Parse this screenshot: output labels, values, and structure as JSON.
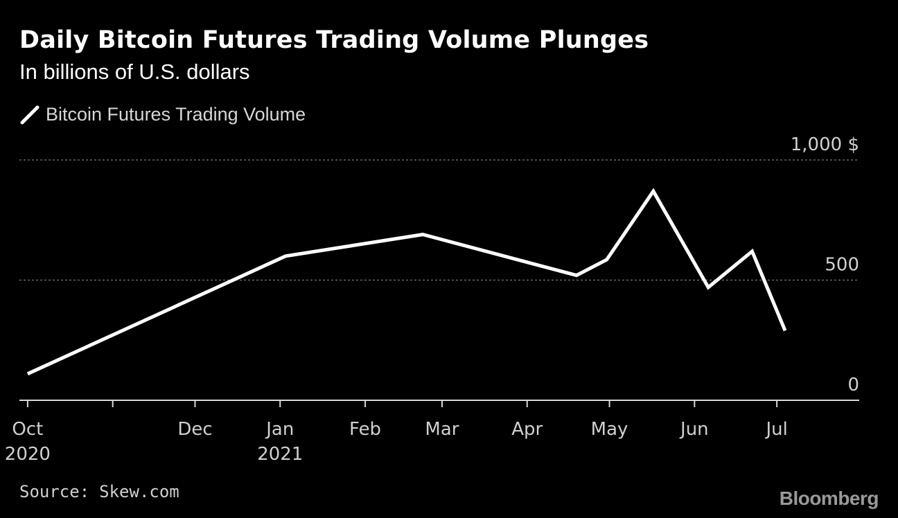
{
  "title": "Daily Bitcoin Futures Trading Volume Plunges",
  "subtitle": "In billions of U.S. dollars",
  "legend": {
    "label": "Bitcoin Futures Trading Volume",
    "icon": "slash-line-icon"
  },
  "source": {
    "label": "Source:",
    "value": "Skew.com"
  },
  "brand": "Bloomberg",
  "colors": {
    "background": "#000000",
    "line": "#ffffff",
    "text": "#d0d0d0",
    "grid": "#666666"
  },
  "chart_data": {
    "type": "line",
    "title": "Daily Bitcoin Futures Trading Volume Plunges",
    "subtitle": "In billions of U.S. dollars",
    "xlabel": "",
    "ylabel": "",
    "x_type": "date",
    "x_range": [
      "2020-09-28",
      "2021-07-31"
    ],
    "ylim": [
      0,
      1000
    ],
    "y_ticks": [
      {
        "value": 0,
        "label": "0"
      },
      {
        "value": 500,
        "label": "500"
      },
      {
        "value": 1000,
        "label": "1,000 $"
      }
    ],
    "x_ticks": [
      {
        "date": "2020-10-01",
        "line1": "Oct",
        "line2": "2020"
      },
      {
        "date": "2020-11-01",
        "line1": "",
        "line2": ""
      },
      {
        "date": "2020-12-01",
        "line1": "Dec",
        "line2": ""
      },
      {
        "date": "2021-01-01",
        "line1": "Jan",
        "line2": "2021"
      },
      {
        "date": "2021-02-01",
        "line1": "Feb",
        "line2": ""
      },
      {
        "date": "2021-03-01",
        "line1": "Mar",
        "line2": ""
      },
      {
        "date": "2021-04-01",
        "line1": "Apr",
        "line2": ""
      },
      {
        "date": "2021-05-01",
        "line1": "May",
        "line2": ""
      },
      {
        "date": "2021-06-01",
        "line1": "Jun",
        "line2": ""
      },
      {
        "date": "2021-07-01",
        "line1": "Jul",
        "line2": ""
      }
    ],
    "grid": "dotted horizontal",
    "legend_position": "top-left",
    "series": [
      {
        "name": "Bitcoin Futures Trading Volume",
        "color": "#ffffff",
        "points": [
          {
            "x": "2020-10-01",
            "y": 110
          },
          {
            "x": "2021-01-03",
            "y": 600
          },
          {
            "x": "2021-02-22",
            "y": 690
          },
          {
            "x": "2021-04-19",
            "y": 520
          },
          {
            "x": "2021-04-30",
            "y": 585
          },
          {
            "x": "2021-05-17",
            "y": 870
          },
          {
            "x": "2021-06-06",
            "y": 470
          },
          {
            "x": "2021-06-22",
            "y": 620
          },
          {
            "x": "2021-07-04",
            "y": 290
          }
        ]
      }
    ]
  }
}
